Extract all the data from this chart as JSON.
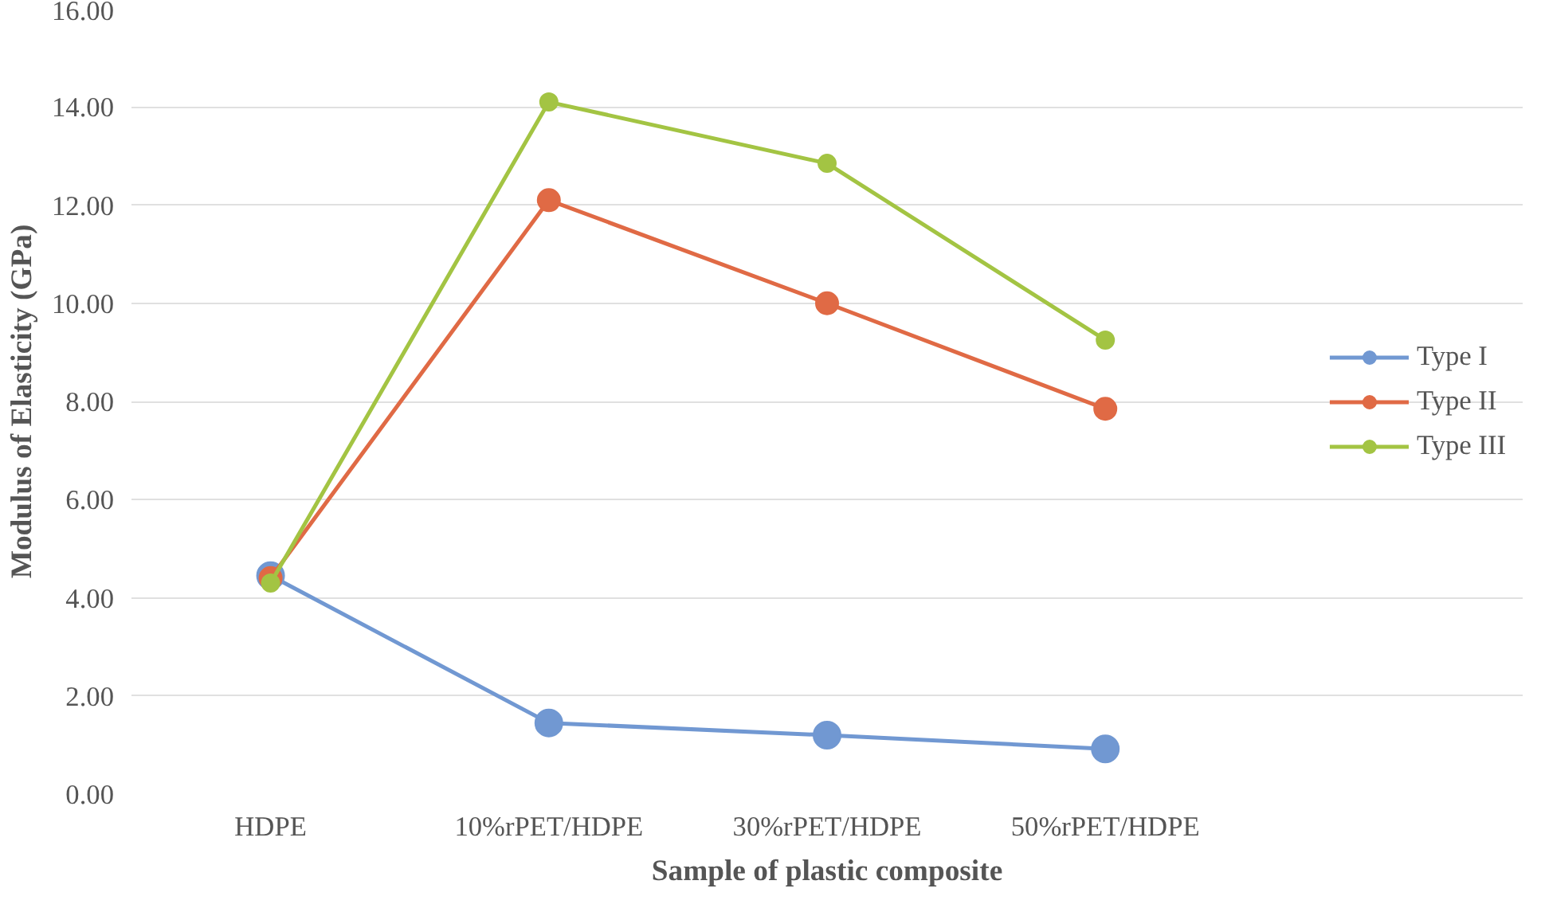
{
  "chart_data": {
    "type": "line",
    "xlabel": "Sample of plastic composite",
    "ylabel": "Modulus of Elasticity (GPa)",
    "categories": [
      "HDPE",
      "10%rPET/HDPE",
      "30%rPET/HDPE",
      "50%rPET/HDPE"
    ],
    "series": [
      {
        "name": "Type I",
        "color": "#7198d2",
        "values": [
          4.45,
          1.45,
          1.2,
          0.92
        ]
      },
      {
        "name": "Type II",
        "color": "#e06a45",
        "values": [
          4.4,
          12.1,
          10.0,
          7.85
        ]
      },
      {
        "name": "Type III",
        "color": "#a3c443",
        "values": [
          4.3,
          14.1,
          12.85,
          9.25
        ]
      }
    ],
    "ylim": [
      0,
      16
    ],
    "yticks": [
      {
        "value": 0,
        "label": "0.00"
      },
      {
        "value": 2,
        "label": "2.00"
      },
      {
        "value": 4,
        "label": "4.00"
      },
      {
        "value": 6,
        "label": "6.00"
      },
      {
        "value": 8,
        "label": "8.00"
      },
      {
        "value": 10,
        "label": "10.00"
      },
      {
        "value": 12,
        "label": "12.00"
      },
      {
        "value": 14,
        "label": "14.00"
      },
      {
        "value": 16,
        "label": "16.00"
      }
    ],
    "grid": "y",
    "legend": "right",
    "marker": "circle",
    "line_style": "solid"
  }
}
